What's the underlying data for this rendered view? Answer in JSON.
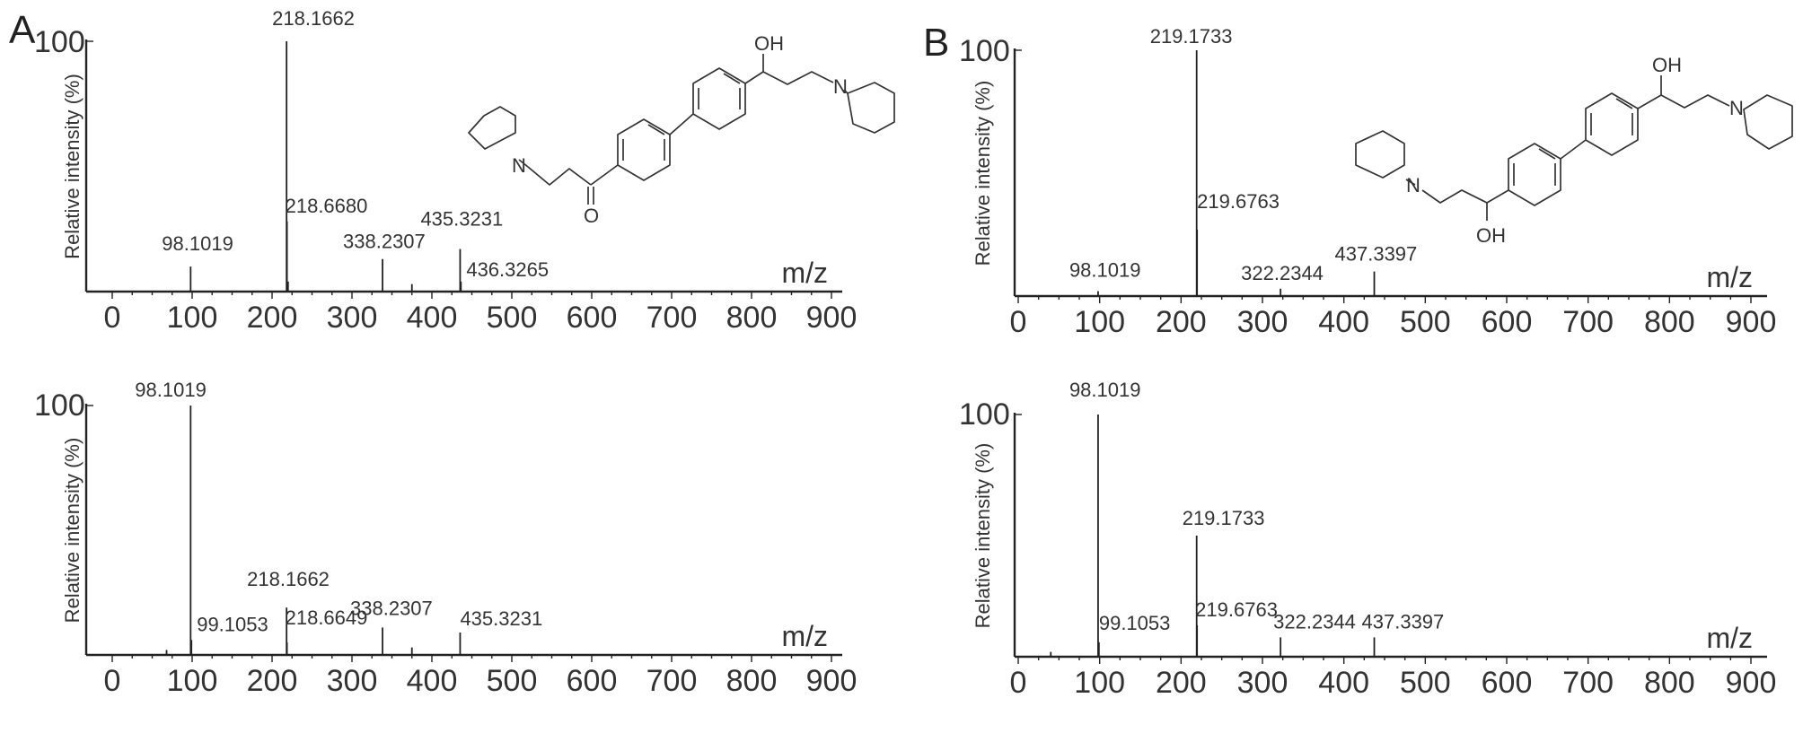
{
  "panels": [
    {
      "letter": "A",
      "structure": "ketone"
    },
    {
      "letter": "B",
      "structure": "diol"
    }
  ],
  "chart_data": [
    {
      "type": "bar",
      "panel": "A",
      "xlabel": "m/z",
      "ylabel": "Relative intensity (%)",
      "y_max_label": "100",
      "xlim": [
        0,
        900
      ],
      "ylim": [
        0,
        100
      ],
      "x_ticks": [
        0,
        100,
        200,
        300,
        400,
        500,
        600,
        700,
        800,
        900
      ],
      "peaks": [
        {
          "x": 98.1019,
          "y": 10,
          "label": "98.1019"
        },
        {
          "x": 218.1662,
          "y": 100,
          "label": "218.1662"
        },
        {
          "x": 218.668,
          "y": 28,
          "label": "218.6680"
        },
        {
          "x": 338.2307,
          "y": 13,
          "label": "338.2307"
        },
        {
          "x": 435.3231,
          "y": 17,
          "label": "435.3231"
        },
        {
          "x": 436.3265,
          "y": 4,
          "label": "436.3265"
        }
      ],
      "minor_peaks": [
        {
          "x": 220,
          "y": 4
        },
        {
          "x": 375,
          "y": 3
        }
      ],
      "annotations": [
        "OH",
        "N",
        "N",
        "O"
      ]
    },
    {
      "type": "bar",
      "panel": "B",
      "xlabel": "m/z",
      "ylabel": "Relative intensity (%)",
      "y_max_label": "100",
      "xlim": [
        0,
        900
      ],
      "ylim": [
        0,
        100
      ],
      "x_ticks": [
        0,
        100,
        200,
        300,
        400,
        500,
        600,
        700,
        800,
        900
      ],
      "peaks": [
        {
          "x": 98.1019,
          "y": 2,
          "label": "98.1019"
        },
        {
          "x": 219.1733,
          "y": 100,
          "label": "219.1733"
        },
        {
          "x": 219.6763,
          "y": 27,
          "label": "219.6763"
        },
        {
          "x": 322.2344,
          "y": 3,
          "label": "322.2344"
        },
        {
          "x": 437.3397,
          "y": 10,
          "label": "437.3397"
        }
      ],
      "minor_peaks": [],
      "annotations": [
        "OH",
        "N",
        "N",
        "OH"
      ]
    },
    {
      "type": "bar",
      "panel": "A",
      "xlabel": "m/z",
      "ylabel": "Relative intensity (%)",
      "y_max_label": "100",
      "xlim": [
        0,
        900
      ],
      "ylim": [
        0,
        100
      ],
      "x_ticks": [
        0,
        100,
        200,
        300,
        400,
        500,
        600,
        700,
        800,
        900
      ],
      "peaks": [
        {
          "x": 98.1019,
          "y": 100,
          "label": "98.1019"
        },
        {
          "x": 99.1053,
          "y": 6,
          "label": "99.1053"
        },
        {
          "x": 218.1662,
          "y": 19,
          "label": "218.1662"
        },
        {
          "x": 218.6649,
          "y": 5,
          "label": "218.6649"
        },
        {
          "x": 338.2307,
          "y": 11,
          "label": "338.2307"
        },
        {
          "x": 435.3231,
          "y": 9,
          "label": "435.3231"
        }
      ],
      "minor_peaks": [
        {
          "x": 68,
          "y": 2
        },
        {
          "x": 375,
          "y": 3
        }
      ]
    },
    {
      "type": "bar",
      "panel": "B",
      "xlabel": "m/z",
      "ylabel": "Relative intensity (%)",
      "y_max_label": "100",
      "xlim": [
        0,
        900
      ],
      "ylim": [
        0,
        100
      ],
      "x_ticks": [
        0,
        100,
        200,
        300,
        400,
        500,
        600,
        700,
        800,
        900
      ],
      "peaks": [
        {
          "x": 98.1019,
          "y": 100,
          "label": "98.1019"
        },
        {
          "x": 99.1053,
          "y": 6,
          "label": "99.1053"
        },
        {
          "x": 219.1733,
          "y": 50,
          "label": "219.1733"
        },
        {
          "x": 219.6763,
          "y": 13,
          "label": "219.6763"
        },
        {
          "x": 322.2344,
          "y": 8,
          "label": "322.2344"
        },
        {
          "x": 437.3397,
          "y": 8,
          "label": "437.3397"
        }
      ],
      "minor_peaks": [
        {
          "x": 40,
          "y": 2
        }
      ]
    }
  ]
}
